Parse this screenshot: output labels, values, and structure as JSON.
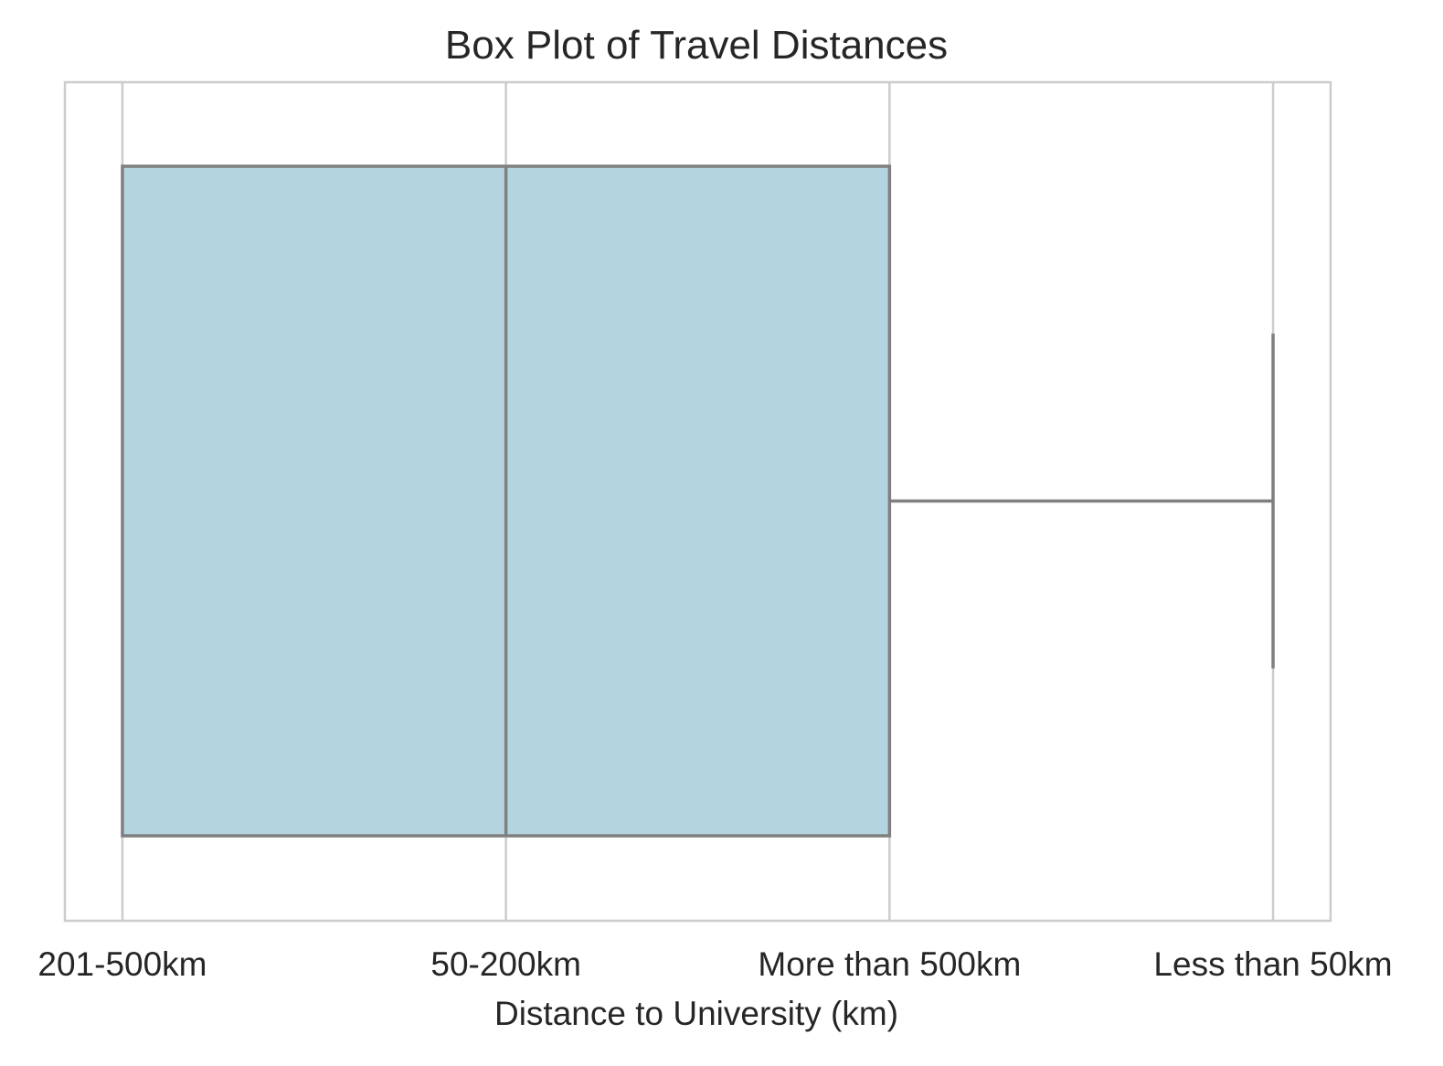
{
  "chart_data": {
    "type": "box",
    "orientation": "horizontal",
    "title": "Box Plot of Travel Distances",
    "xlabel": "Distance to University (km)",
    "ylabel": "",
    "categories": [
      "201-500km",
      "50-200km",
      "More than 500km",
      "Less than 50km"
    ],
    "box": {
      "min": 0,
      "q1": 0,
      "median": 1,
      "q3": 2,
      "max": 3
    },
    "xlim": [
      -0.15,
      3.15
    ],
    "grid": "x",
    "legend": "none",
    "colors": {
      "box_fill": "#b4d5df",
      "box_edge": "#7f7f7f",
      "grid": "#cccccc",
      "text": "#262626"
    }
  }
}
